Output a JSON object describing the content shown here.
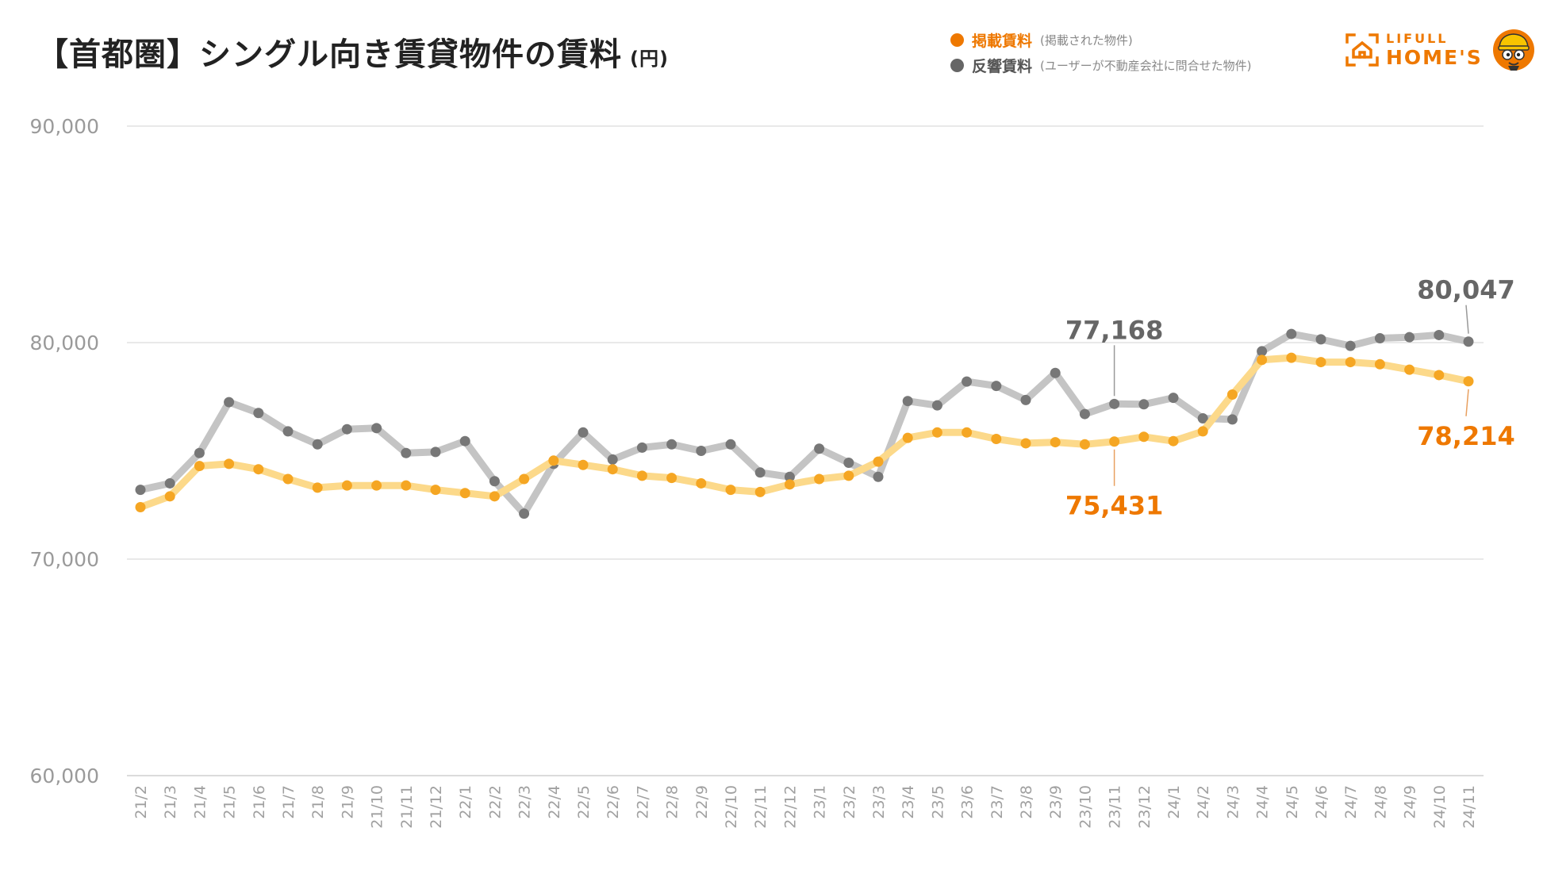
{
  "header": {
    "title": "【首都圏】シングル向き賃貸物件の賃料",
    "unit": "(円)"
  },
  "legend": [
    {
      "name": "掲載賃料",
      "note": "(掲載された物件)",
      "color": "#ee7800"
    },
    {
      "name": "反響賃料",
      "note": "(ユーザーが不動産会社に問合せた物件)",
      "color": "#666666"
    }
  ],
  "logo": {
    "top": "LIFULL",
    "bottom": "HOME'S"
  },
  "chart_data": {
    "type": "line",
    "title": "【首都圏】シングル向き賃貸物件の賃料",
    "ylabel": "(円)",
    "xlabel": "",
    "ylim": [
      60000,
      90000
    ],
    "yticks": [
      60000,
      70000,
      80000,
      90000
    ],
    "ytick_labels": [
      "60,000",
      "70,000",
      "80,000",
      "90,000"
    ],
    "categories": [
      "21/2",
      "21/3",
      "21/4",
      "21/5",
      "21/6",
      "21/7",
      "21/8",
      "21/9",
      "21/10",
      "21/11",
      "21/12",
      "22/1",
      "22/2",
      "22/3",
      "22/4",
      "22/5",
      "22/6",
      "22/7",
      "22/8",
      "22/9",
      "22/10",
      "22/11",
      "22/12",
      "23/1",
      "23/2",
      "23/3",
      "23/4",
      "23/5",
      "23/6",
      "23/7",
      "23/8",
      "23/9",
      "23/10",
      "23/11",
      "23/12",
      "24/1",
      "24/2",
      "24/3",
      "24/4",
      "24/5",
      "24/6",
      "24/7",
      "24/8",
      "24/9",
      "24/10",
      "24/11"
    ],
    "series": [
      {
        "name": "掲載賃料",
        "color": "#f5a623",
        "line_color": "#fcd98a",
        "values": [
          72400,
          72900,
          74300,
          74400,
          74150,
          73700,
          73300,
          73400,
          73400,
          73400,
          73200,
          73050,
          72900,
          73700,
          74550,
          74350,
          74150,
          73850,
          73750,
          73500,
          73200,
          73100,
          73450,
          73700,
          73850,
          74500,
          75600,
          75850,
          75850,
          75550,
          75350,
          75400,
          75300,
          75431,
          75650,
          75450,
          75900,
          77600,
          79200,
          79300,
          79100,
          79100,
          79000,
          78750,
          78500,
          78214
        ]
      },
      {
        "name": "反響賃料",
        "color": "#777777",
        "line_color": "#c4c4c4",
        "values": [
          73200,
          73500,
          74900,
          77250,
          76750,
          75900,
          75300,
          76000,
          76050,
          74900,
          74950,
          75450,
          73600,
          72100,
          74400,
          75850,
          74600,
          75150,
          75300,
          75000,
          75300,
          74000,
          73800,
          75100,
          74450,
          73800,
          77300,
          77100,
          78200,
          78000,
          77350,
          78600,
          76700,
          77168,
          77150,
          77450,
          76500,
          76450,
          79600,
          80400,
          80150,
          79850,
          80200,
          80250,
          80350,
          80047
        ]
      }
    ],
    "annotations": [
      {
        "series": "反響賃料",
        "category": "23/11",
        "label": "77,168",
        "position": "above"
      },
      {
        "series": "掲載賃料",
        "category": "23/11",
        "label": "75,431",
        "position": "below"
      },
      {
        "series": "反響賃料",
        "category": "24/11",
        "label": "80,047",
        "position": "above"
      },
      {
        "series": "掲載賃料",
        "category": "24/11",
        "label": "78,214",
        "position": "below"
      }
    ]
  }
}
